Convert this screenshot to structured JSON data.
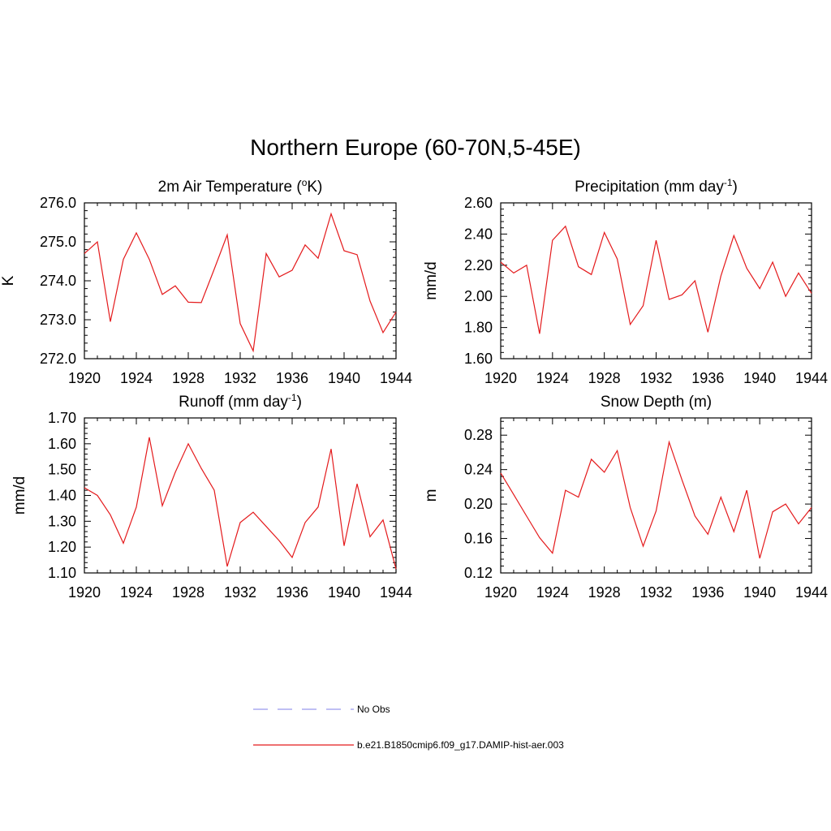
{
  "title": "Northern Europe (60-70N,5-45E)",
  "chart_data": [
    {
      "type": "line",
      "title": "2m Air Temperature (",
      "title_unit_sup": "o",
      "title_unit": "K)",
      "ylabel": "K",
      "xlim": [
        1920,
        1944
      ],
      "ylim": [
        272.0,
        276.0
      ],
      "xticks": [
        "1920",
        "1924",
        "1928",
        "1932",
        "1936",
        "1940",
        "1944"
      ],
      "yticks": [
        "272.0",
        "273.0",
        "274.0",
        "275.0",
        "276.0"
      ],
      "series": [
        {
          "color": "#e41a1c",
          "x": [
            1920,
            1921,
            1922,
            1923,
            1924,
            1925,
            1926,
            1927,
            1928,
            1929,
            1930,
            1931,
            1932,
            1933,
            1934,
            1935,
            1936,
            1937,
            1938,
            1939,
            1940,
            1941,
            1942,
            1943,
            1944
          ],
          "y": [
            274.7,
            275.0,
            272.95,
            274.55,
            275.23,
            274.55,
            273.65,
            273.87,
            273.45,
            273.44,
            274.3,
            275.18,
            272.9,
            272.2,
            274.7,
            274.1,
            274.27,
            274.92,
            274.58,
            275.72,
            274.77,
            274.67,
            273.48,
            272.67,
            273.2
          ]
        }
      ]
    },
    {
      "type": "line",
      "title": "Precipitation (mm day",
      "title_unit_sup": "-1",
      "title_unit": ")",
      "ylabel": "mm/d",
      "xlim": [
        1920,
        1944
      ],
      "ylim": [
        1.6,
        2.6
      ],
      "xticks": [
        "1920",
        "1924",
        "1928",
        "1932",
        "1936",
        "1940",
        "1944"
      ],
      "yticks": [
        "1.60",
        "1.80",
        "2.00",
        "2.20",
        "2.40",
        "2.60"
      ],
      "series": [
        {
          "color": "#e41a1c",
          "x": [
            1920,
            1921,
            1922,
            1923,
            1924,
            1925,
            1926,
            1927,
            1928,
            1929,
            1930,
            1931,
            1932,
            1933,
            1934,
            1935,
            1936,
            1937,
            1938,
            1939,
            1940,
            1941,
            1942,
            1943,
            1944
          ],
          "y": [
            2.22,
            2.15,
            2.2,
            1.76,
            2.36,
            2.45,
            2.19,
            2.14,
            2.41,
            2.24,
            1.82,
            1.94,
            2.36,
            1.98,
            2.01,
            2.1,
            1.77,
            2.13,
            2.39,
            2.18,
            2.05,
            2.22,
            2.0,
            2.15,
            2.02
          ]
        }
      ]
    },
    {
      "type": "line",
      "title": "Runoff (mm day",
      "title_unit_sup": "-1",
      "title_unit": ")",
      "ylabel": "mm/d",
      "xlim": [
        1920,
        1944
      ],
      "ylim": [
        1.1,
        1.7
      ],
      "xticks": [
        "1920",
        "1924",
        "1928",
        "1932",
        "1936",
        "1940",
        "1944"
      ],
      "yticks": [
        "1.10",
        "1.20",
        "1.30",
        "1.40",
        "1.50",
        "1.60",
        "1.70"
      ],
      "series": [
        {
          "color": "#e41a1c",
          "x": [
            1920,
            1921,
            1922,
            1923,
            1924,
            1925,
            1926,
            1927,
            1928,
            1929,
            1930,
            1931,
            1932,
            1933,
            1934,
            1935,
            1936,
            1937,
            1938,
            1939,
            1940,
            1941,
            1942,
            1943,
            1944
          ],
          "y": [
            1.43,
            1.4,
            1.325,
            1.215,
            1.355,
            1.625,
            1.36,
            1.49,
            1.6,
            1.505,
            1.42,
            1.125,
            1.295,
            1.335,
            1.28,
            1.225,
            1.16,
            1.295,
            1.355,
            1.58,
            1.205,
            1.445,
            1.24,
            1.305,
            1.115
          ]
        }
      ]
    },
    {
      "type": "line",
      "title": "Snow Depth (m)",
      "title_unit_sup": "",
      "title_unit": "",
      "ylabel": "m",
      "xlim": [
        1920,
        1944
      ],
      "ylim": [
        0.12,
        0.3
      ],
      "xticks": [
        "1920",
        "1924",
        "1928",
        "1932",
        "1936",
        "1940",
        "1944"
      ],
      "yticks": [
        "0.12",
        "0.16",
        "0.20",
        "0.24",
        "0.28"
      ],
      "series": [
        {
          "color": "#e41a1c",
          "x": [
            1920,
            1921,
            1922,
            1923,
            1924,
            1925,
            1926,
            1927,
            1928,
            1929,
            1930,
            1931,
            1932,
            1933,
            1934,
            1935,
            1936,
            1937,
            1938,
            1939,
            1940,
            1941,
            1942,
            1943,
            1944
          ],
          "y": [
            0.236,
            0.211,
            0.186,
            0.161,
            0.143,
            0.216,
            0.208,
            0.252,
            0.237,
            0.262,
            0.196,
            0.151,
            0.192,
            0.272,
            0.228,
            0.186,
            0.165,
            0.208,
            0.168,
            0.216,
            0.137,
            0.191,
            0.2,
            0.177,
            0.196
          ]
        }
      ]
    }
  ],
  "legend": [
    {
      "label": "No Obs",
      "color": "#9999ee",
      "dash": true
    },
    {
      "label": "b.e21.B1850cmip6.f09_g17.DAMIP-hist-aer.003",
      "color": "#e41a1c",
      "dash": false
    }
  ]
}
